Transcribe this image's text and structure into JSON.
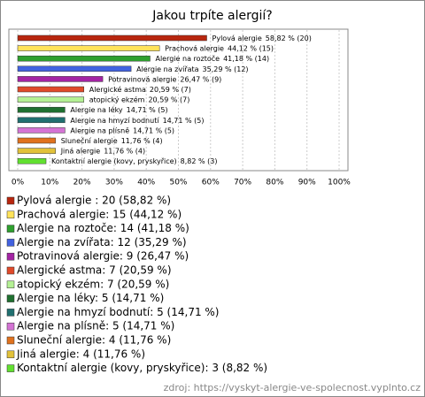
{
  "chart_data": {
    "type": "hbar",
    "title": "Jakou trpíte alergií?",
    "categories": [
      "Pylová alergie",
      "Prachová alergie",
      "Alergie na roztoče",
      "Alergie na zvířata",
      "Potravinová alergie",
      "Alergické astma",
      "atopický ekzém",
      "Alergie na léky",
      "Alergie na hmyzí bodnutí",
      "Alergie na plísně",
      "Sluneční alergie",
      "Jiná alergie",
      "Kontaktní alergie (kovy, pryskyřice)"
    ],
    "values": [
      58.82,
      44.12,
      41.18,
      35.29,
      26.47,
      20.59,
      20.59,
      14.71,
      14.71,
      14.71,
      11.76,
      11.76,
      8.82
    ],
    "value_labels": [
      "58,82 % (20)",
      "44,12 % (15)",
      "41,18 % (14)",
      "35,29 % (12)",
      "26,47 % (9)",
      "20,59 % (7)",
      "20,59 % (7)",
      "14,71 % (5)",
      "14,71 % (5)",
      "14,71 % (5)",
      "11,76 % (4)",
      "11,76 % (4)",
      "8,82 % (3)"
    ],
    "legend_labels": [
      "Pylová alergie : 20 (58,82 %)",
      "Prachová alergie: 15 (44,12 %)",
      "Alergie na roztoče: 14 (41,18 %)",
      "Alergie na zvířata: 12 (35,29 %)",
      "Potravinová alergie: 9 (26,47 %)",
      "Alergické astma: 7 (20,59 %)",
      "atopický ekzém: 7 (20,59 %)",
      "Alergie na léky: 5 (14,71 %)",
      "Alergie na hmyzí bodnutí: 5 (14,71 %)",
      "Alergie na plísně: 5 (14,71 %)",
      "Sluneční alergie: 4 (11,76 %)",
      "Jiná alergie: 4 (11,76 %)",
      "Kontaktní alergie (kovy, pryskyřice): 3 (8,82 %)"
    ],
    "colors": [
      "#b8260e",
      "#ffe35a",
      "#2ea02e",
      "#4262e0",
      "#a424a4",
      "#e04a2a",
      "#b4f094",
      "#1f7030",
      "#207070",
      "#d474d4",
      "#e0721e",
      "#e2c23a",
      "#62e030"
    ],
    "xlim": [
      0,
      100
    ],
    "xticks": [
      {
        "value": 0,
        "label": "0%"
      },
      {
        "value": 10,
        "label": "10%"
      },
      {
        "value": 20,
        "label": "20%"
      },
      {
        "value": 30,
        "label": "30%"
      },
      {
        "value": 40,
        "label": "40%"
      },
      {
        "value": 50,
        "label": "50%"
      },
      {
        "value": 60,
        "label": "60%"
      },
      {
        "value": 70,
        "label": "70%"
      },
      {
        "value": 80,
        "label": "80%"
      },
      {
        "value": 90,
        "label": "90%"
      },
      {
        "value": 100,
        "label": "100%"
      }
    ],
    "grid": true,
    "source": "zdroj: https://vyskyt-alergie-ve-spolecnost.vyplnto.cz"
  }
}
